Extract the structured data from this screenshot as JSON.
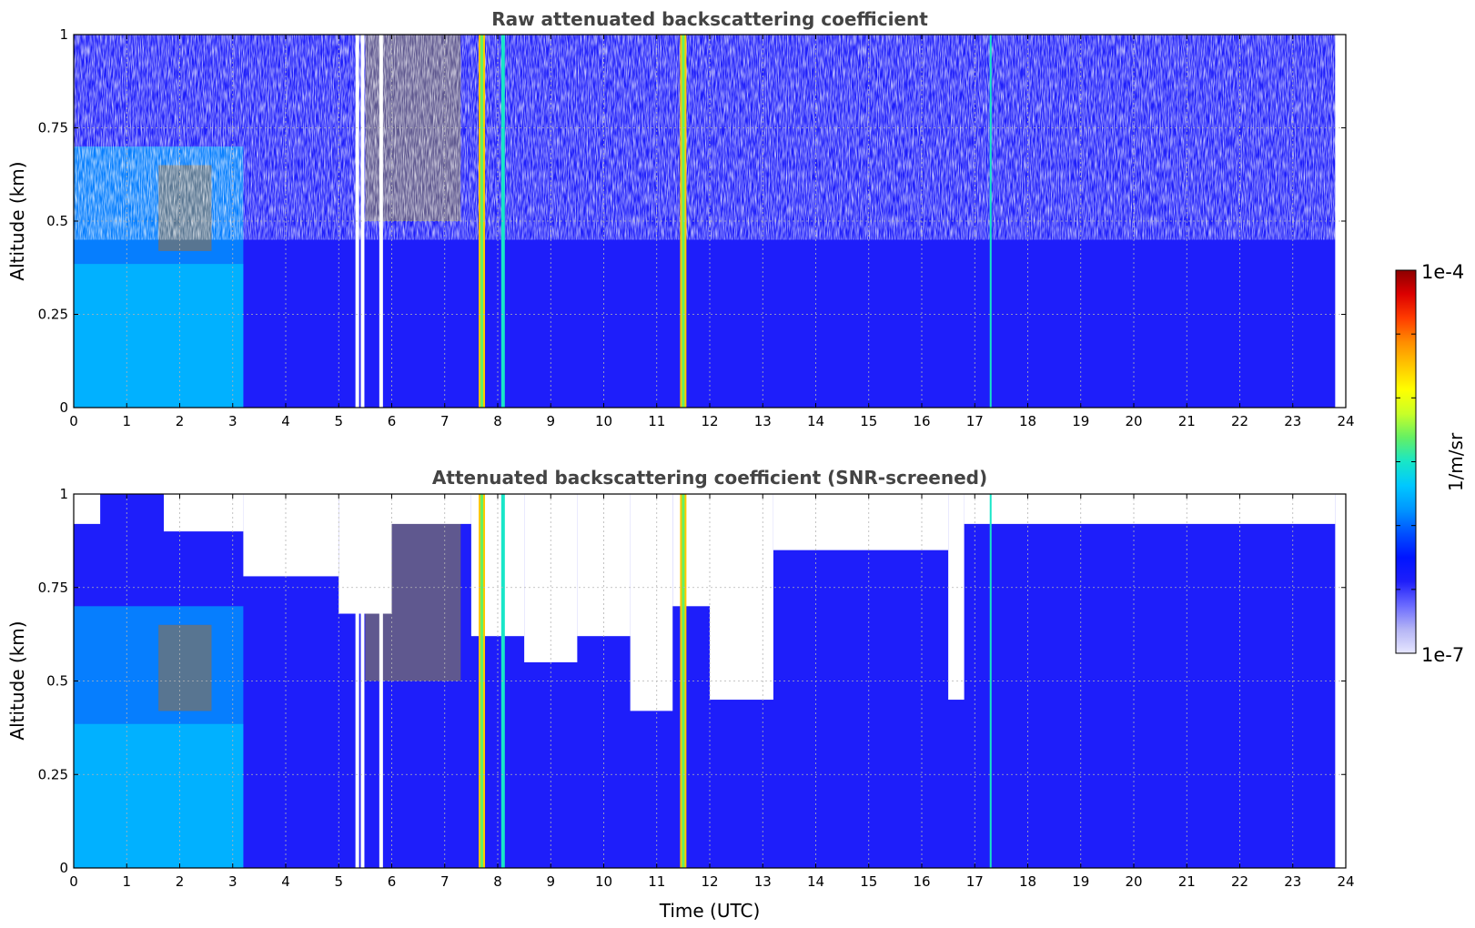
{
  "chart_data": [
    {
      "type": "heatmap",
      "title": "Raw attenuated backscattering coefficient",
      "xlabel": "",
      "ylabel": "Altitude (km)",
      "xlim": [
        0,
        24
      ],
      "ylim": [
        0,
        1
      ],
      "x_ticks": [
        "0",
        "1",
        "2",
        "3",
        "4",
        "5",
        "6",
        "7",
        "8",
        "9",
        "10",
        "11",
        "12",
        "13",
        "14",
        "15",
        "16",
        "17",
        "18",
        "19",
        "20",
        "21",
        "22",
        "23",
        "24"
      ],
      "y_ticks": [
        "0",
        "0.25",
        "0.5",
        "0.75",
        "1"
      ],
      "grid": true,
      "screened": false,
      "features": [
        {
          "label": "aerosol layer",
          "time_start": 0.0,
          "time_end": 3.2,
          "alt_top": 0.7
        },
        {
          "label": "elevated aerosol / cloud",
          "time_start": 1.6,
          "time_end": 2.6,
          "alt_bottom": 0.42,
          "alt_top": 0.65
        },
        {
          "label": "elevated aerosol / cloud",
          "time_start": 5.5,
          "time_end": 7.3,
          "alt_bottom": 0.5,
          "alt_top": 1.0
        },
        {
          "label": "strong vertical streak",
          "time": 7.7
        },
        {
          "label": "vertical streak",
          "time": 8.1
        },
        {
          "label": "strong vertical streak",
          "time": 11.5
        },
        {
          "label": "thin vertical streak",
          "time": 17.3
        },
        {
          "label": "no-data gaps",
          "times": [
            5.35,
            5.45,
            5.8
          ]
        }
      ]
    },
    {
      "type": "heatmap",
      "title": "Attenuated backscattering coefficient (SNR-screened)",
      "xlabel": "Time (UTC)",
      "ylabel": "Altitude (km)",
      "xlim": [
        0,
        24
      ],
      "ylim": [
        0,
        1
      ],
      "x_ticks": [
        "0",
        "1",
        "2",
        "3",
        "4",
        "5",
        "6",
        "7",
        "8",
        "9",
        "10",
        "11",
        "12",
        "13",
        "14",
        "15",
        "16",
        "17",
        "18",
        "19",
        "20",
        "21",
        "22",
        "23",
        "24"
      ],
      "y_ticks": [
        "0",
        "0.25",
        "0.5",
        "0.75",
        "1"
      ],
      "grid": true,
      "screened": true,
      "features": [
        {
          "label": "aerosol layer",
          "time_start": 0.0,
          "time_end": 3.2,
          "alt_top": 0.7
        },
        {
          "label": "elevated aerosol / cloud",
          "time_start": 1.6,
          "time_end": 2.6,
          "alt_bottom": 0.42,
          "alt_top": 0.65
        },
        {
          "label": "elevated aerosol / cloud",
          "time_start": 5.5,
          "time_end": 7.3,
          "alt_bottom": 0.5,
          "alt_top": 1.0
        },
        {
          "label": "strong vertical streak",
          "time": 7.7
        },
        {
          "label": "vertical streak",
          "time": 8.1
        },
        {
          "label": "strong vertical streak",
          "time": 11.5
        },
        {
          "label": "thin vertical streak",
          "time": 17.3
        },
        {
          "label": "no-data gaps",
          "times": [
            5.35,
            5.45,
            5.8
          ]
        }
      ],
      "screened_profile": [
        {
          "time_start": 0.0,
          "time_end": 0.5,
          "alt_top": 0.92
        },
        {
          "time_start": 0.5,
          "time_end": 1.7,
          "alt_top": 1.0
        },
        {
          "time_start": 1.7,
          "time_end": 3.2,
          "alt_top": 0.9
        },
        {
          "time_start": 3.2,
          "time_end": 5.0,
          "alt_top": 0.78
        },
        {
          "time_start": 5.0,
          "time_end": 6.0,
          "alt_top": 0.68
        },
        {
          "time_start": 6.0,
          "time_end": 7.5,
          "alt_top": 0.92
        },
        {
          "time_start": 7.5,
          "time_end": 8.5,
          "alt_top": 0.62
        },
        {
          "time_start": 8.5,
          "time_end": 9.5,
          "alt_top": 0.55
        },
        {
          "time_start": 9.5,
          "time_end": 10.5,
          "alt_top": 0.62
        },
        {
          "time_start": 10.5,
          "time_end": 11.3,
          "alt_top": 0.42
        },
        {
          "time_start": 11.3,
          "time_end": 12.0,
          "alt_top": 0.7
        },
        {
          "time_start": 12.0,
          "time_end": 13.2,
          "alt_top": 0.45
        },
        {
          "time_start": 13.2,
          "time_end": 16.5,
          "alt_top": 0.85
        },
        {
          "time_start": 16.5,
          "time_end": 16.8,
          "alt_top": 0.45
        },
        {
          "time_start": 16.8,
          "time_end": 23.8,
          "alt_top": 0.92
        }
      ]
    }
  ],
  "colorbar": {
    "label": "1/m/sr",
    "max_label": "1e-4",
    "min_label": "1e-7",
    "min": 1e-07,
    "max": 0.0001,
    "scale": "log",
    "colormap": [
      "#e6e6ff",
      "#b4b4f5",
      "#6a6aff",
      "#1e1efa",
      "#0014ff",
      "#0050ff",
      "#0096ff",
      "#00c8ff",
      "#18e6c8",
      "#64f064",
      "#c8ff28",
      "#ffff00",
      "#ffc800",
      "#ff8c00",
      "#ff3c00",
      "#dc0000",
      "#8c0000"
    ]
  }
}
